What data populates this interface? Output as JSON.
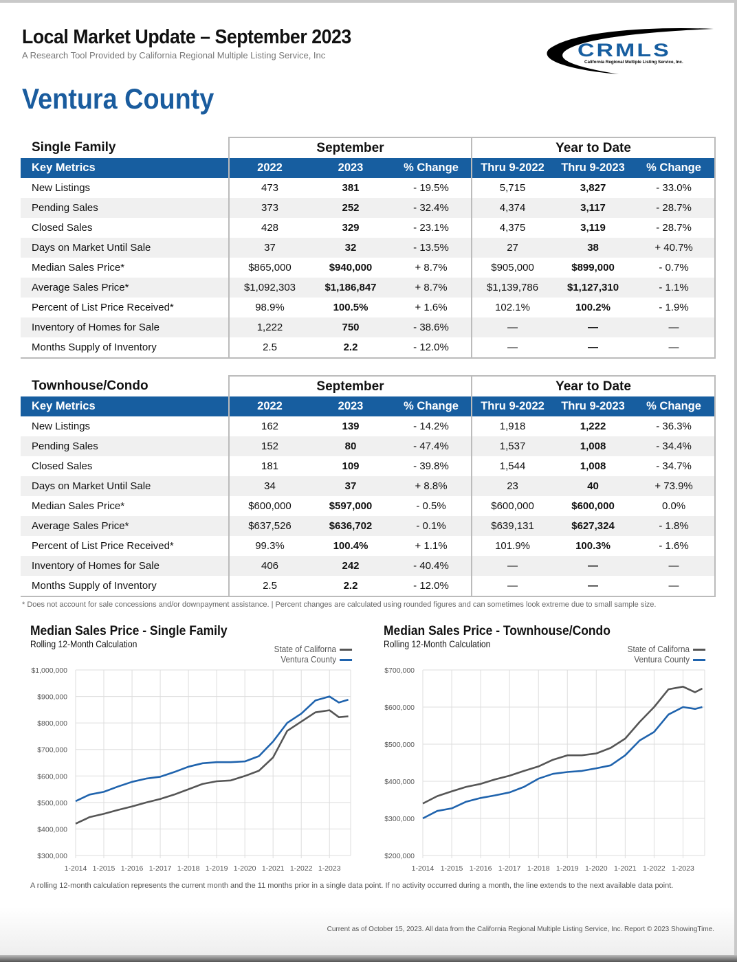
{
  "header": {
    "title": "Local Market Update – September 2023",
    "subtitle": "A Research Tool Provided by California Regional Multiple Listing Service, Inc",
    "county": "Ventura County",
    "logo_text": "CRMLS",
    "logo_subtext": "California Regional Multiple Listing Service, Inc."
  },
  "colors": {
    "accent": "#175ea0",
    "state_line": "#555555",
    "county_line": "#1f63ad"
  },
  "tables": [
    {
      "section": "Single Family",
      "group_month": "September",
      "group_ytd": "Year to Date",
      "columns": [
        "Key Metrics",
        "2022",
        "2023",
        "% Change",
        "Thru 9-2022",
        "Thru 9-2023",
        "% Change"
      ],
      "rows": [
        [
          "New Listings",
          "473",
          "381",
          "- 19.5%",
          "5,715",
          "3,827",
          "- 33.0%"
        ],
        [
          "Pending Sales",
          "373",
          "252",
          "- 32.4%",
          "4,374",
          "3,117",
          "- 28.7%"
        ],
        [
          "Closed Sales",
          "428",
          "329",
          "- 23.1%",
          "4,375",
          "3,119",
          "- 28.7%"
        ],
        [
          "Days on Market Until Sale",
          "37",
          "32",
          "- 13.5%",
          "27",
          "38",
          "+ 40.7%"
        ],
        [
          "Median Sales Price*",
          "$865,000",
          "$940,000",
          "+ 8.7%",
          "$905,000",
          "$899,000",
          "- 0.7%"
        ],
        [
          "Average Sales Price*",
          "$1,092,303",
          "$1,186,847",
          "+ 8.7%",
          "$1,139,786",
          "$1,127,310",
          "- 1.1%"
        ],
        [
          "Percent of List Price Received*",
          "98.9%",
          "100.5%",
          "+ 1.6%",
          "102.1%",
          "100.2%",
          "- 1.9%"
        ],
        [
          "Inventory of Homes for Sale",
          "1,222",
          "750",
          "- 38.6%",
          "—",
          "—",
          "—"
        ],
        [
          "Months Supply of Inventory",
          "2.5",
          "2.2",
          "- 12.0%",
          "—",
          "—",
          "—"
        ]
      ]
    },
    {
      "section": "Townhouse/Condo",
      "group_month": "September",
      "group_ytd": "Year to Date",
      "columns": [
        "Key Metrics",
        "2022",
        "2023",
        "% Change",
        "Thru 9-2022",
        "Thru 9-2023",
        "% Change"
      ],
      "rows": [
        [
          "New Listings",
          "162",
          "139",
          "- 14.2%",
          "1,918",
          "1,222",
          "- 36.3%"
        ],
        [
          "Pending Sales",
          "152",
          "80",
          "- 47.4%",
          "1,537",
          "1,008",
          "- 34.4%"
        ],
        [
          "Closed Sales",
          "181",
          "109",
          "- 39.8%",
          "1,544",
          "1,008",
          "- 34.7%"
        ],
        [
          "Days on Market Until Sale",
          "34",
          "37",
          "+ 8.8%",
          "23",
          "40",
          "+ 73.9%"
        ],
        [
          "Median Sales Price*",
          "$600,000",
          "$597,000",
          "- 0.5%",
          "$600,000",
          "$600,000",
          "0.0%"
        ],
        [
          "Average Sales Price*",
          "$637,526",
          "$636,702",
          "- 0.1%",
          "$639,131",
          "$627,324",
          "- 1.8%"
        ],
        [
          "Percent of List Price Received*",
          "99.3%",
          "100.4%",
          "+ 1.1%",
          "101.9%",
          "100.3%",
          "- 1.6%"
        ],
        [
          "Inventory of Homes for Sale",
          "406",
          "242",
          "- 40.4%",
          "—",
          "—",
          "—"
        ],
        [
          "Months Supply of Inventory",
          "2.5",
          "2.2",
          "- 12.0%",
          "—",
          "—",
          "—"
        ]
      ]
    }
  ],
  "note": "* Does not account for sale concessions and/or downpayment assistance. | Percent changes are calculated using rounded figures and can sometimes look extreme due to small sample size.",
  "chart_data": [
    {
      "type": "line",
      "title": "Median Sales Price - Single Family",
      "subtitle": "Rolling 12-Month Calculation",
      "legend_placement": "top-right",
      "grid": true,
      "ylim": [
        300000,
        1000000
      ],
      "yticks": [
        "$1,000,000",
        "$900,000",
        "$800,000",
        "$700,000",
        "$600,000",
        "$500,000",
        "$400,000",
        "$300,000"
      ],
      "ytick_values": [
        1000000,
        900000,
        800000,
        700000,
        600000,
        500000,
        400000,
        300000
      ],
      "xticks": [
        "1-2014",
        "1-2015",
        "1-2016",
        "1-2017",
        "1-2018",
        "1-2019",
        "1-2020",
        "1-2021",
        "1-2022",
        "1-2023"
      ],
      "x": [
        "2014-01",
        "2014-07",
        "2015-01",
        "2015-07",
        "2016-01",
        "2016-07",
        "2017-01",
        "2017-07",
        "2018-01",
        "2018-07",
        "2019-01",
        "2019-07",
        "2020-01",
        "2020-07",
        "2021-01",
        "2021-07",
        "2022-01",
        "2022-07",
        "2023-01",
        "2023-05",
        "2023-09"
      ],
      "series": [
        {
          "name": "State of Californa",
          "color": "#555555",
          "values": [
            420000,
            445000,
            457000,
            472000,
            485000,
            500000,
            513000,
            530000,
            550000,
            570000,
            580000,
            583000,
            600000,
            620000,
            670000,
            770000,
            805000,
            840000,
            848000,
            822000,
            825000
          ]
        },
        {
          "name": "Ventura County",
          "color": "#1f63ad",
          "values": [
            505000,
            530000,
            540000,
            560000,
            578000,
            590000,
            597000,
            615000,
            635000,
            648000,
            652000,
            652000,
            655000,
            675000,
            730000,
            800000,
            835000,
            885000,
            900000,
            877000,
            888000
          ]
        }
      ]
    },
    {
      "type": "line",
      "title": "Median Sales Price - Townhouse/Condo",
      "subtitle": "Rolling 12-Month Calculation",
      "legend_placement": "top-right",
      "grid": true,
      "ylim": [
        200000,
        700000
      ],
      "yticks": [
        "$700,000",
        "$600,000",
        "$500,000",
        "$400,000",
        "$300,000",
        "$200,000"
      ],
      "ytick_values": [
        700000,
        600000,
        500000,
        400000,
        300000,
        200000
      ],
      "xticks": [
        "1-2014",
        "1-2015",
        "1-2016",
        "1-2017",
        "1-2018",
        "1-2019",
        "1-2020",
        "1-2021",
        "1-2022",
        "1-2023"
      ],
      "x": [
        "2014-01",
        "2014-07",
        "2015-01",
        "2015-07",
        "2016-01",
        "2016-07",
        "2017-01",
        "2017-07",
        "2018-01",
        "2018-07",
        "2019-01",
        "2019-07",
        "2020-01",
        "2020-07",
        "2021-01",
        "2021-07",
        "2022-01",
        "2022-07",
        "2023-01",
        "2023-06",
        "2023-09"
      ],
      "series": [
        {
          "name": "State of Californa",
          "color": "#555555",
          "values": [
            340000,
            360000,
            373000,
            385000,
            393000,
            405000,
            415000,
            428000,
            440000,
            458000,
            470000,
            470000,
            475000,
            490000,
            515000,
            560000,
            600000,
            648000,
            655000,
            640000,
            650000
          ]
        },
        {
          "name": "Ventura County",
          "color": "#1f63ad",
          "values": [
            300000,
            320000,
            327000,
            345000,
            355000,
            362000,
            370000,
            385000,
            407000,
            420000,
            425000,
            428000,
            435000,
            443000,
            470000,
            510000,
            533000,
            580000,
            600000,
            595000,
            600000
          ]
        }
      ]
    }
  ],
  "footer": {
    "rolling_note": "A rolling 12-month calculation represents the current month and the 11 months prior in a single data point. If no activity occurred during a month, the line extends to the next available data point.",
    "current_as_of": "Current as of October 15, 2023. All data from the California Regional Multiple Listing Service, Inc. Report © 2023 ShowingTime."
  }
}
